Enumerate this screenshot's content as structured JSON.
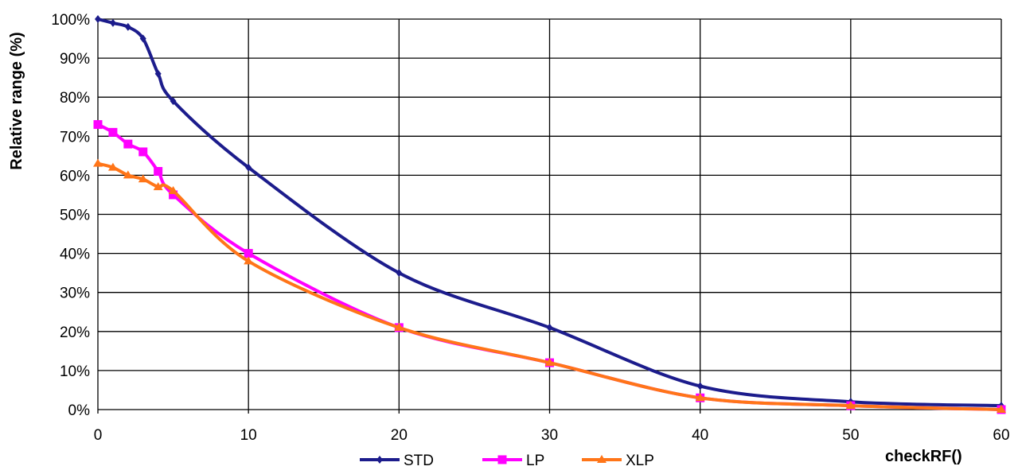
{
  "chart_data": {
    "type": "line",
    "xlabel": "checkRF()",
    "ylabel": "Relative range (%)",
    "xlim": [
      0,
      60
    ],
    "ylim": [
      0,
      100
    ],
    "x_ticks": [
      "0",
      "10",
      "20",
      "30",
      "40",
      "50",
      "60"
    ],
    "y_ticks": [
      "0%",
      "10%",
      "20%",
      "30%",
      "40%",
      "50%",
      "60%",
      "70%",
      "80%",
      "90%",
      "100%"
    ],
    "grid": true,
    "legend_position": "bottom",
    "series": [
      {
        "name": "STD",
        "color": "#1c1c8c",
        "marker": "diamond",
        "x": [
          0,
          1,
          2,
          3,
          4,
          5,
          10,
          20,
          30,
          40,
          50,
          60
        ],
        "y": [
          100,
          99,
          98,
          95,
          86,
          79,
          62,
          35,
          21,
          6,
          2,
          1
        ]
      },
      {
        "name": "LP",
        "color": "#ff00ff",
        "marker": "square",
        "x": [
          0,
          1,
          2,
          3,
          4,
          5,
          10,
          20,
          30,
          40,
          50,
          60
        ],
        "y": [
          73,
          71,
          68,
          66,
          61,
          55,
          40,
          21,
          12,
          3,
          1,
          0
        ]
      },
      {
        "name": "XLP",
        "color": "#ff7518",
        "marker": "triangle",
        "x": [
          0,
          1,
          2,
          3,
          4,
          5,
          10,
          20,
          30,
          40,
          50,
          60
        ],
        "y": [
          63,
          62,
          60,
          59,
          57,
          56,
          38,
          21,
          12,
          3,
          1,
          0
        ]
      }
    ]
  }
}
